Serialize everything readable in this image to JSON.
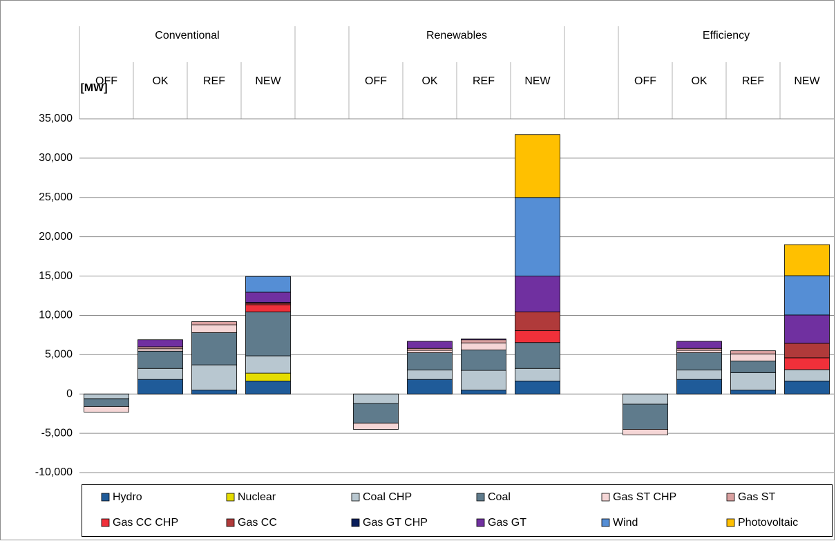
{
  "chart_data": {
    "type": "bar",
    "stacked": true,
    "y_label": "[MW]",
    "groups": [
      "Conventional",
      "Renewables",
      "Efficiency"
    ],
    "categories": [
      "OFF",
      "OK",
      "REF",
      "NEW",
      null,
      "OFF",
      "OK",
      "REF",
      "NEW",
      null,
      "OFF",
      "OK",
      "REF",
      "NEW"
    ],
    "ylim": [
      -10000,
      35000
    ],
    "yticks": [
      {
        "value": -10000,
        "label": "-10,000"
      },
      {
        "value": -5000,
        "label": "-5,000"
      },
      0,
      {
        "value": 5000,
        "label": "5,000"
      },
      {
        "value": 10000,
        "label": "10,000"
      },
      {
        "value": 15000,
        "label": "15,000"
      },
      {
        "value": 20000,
        "label": "20,000"
      },
      {
        "value": 25000,
        "label": "25,000"
      },
      {
        "value": 30000,
        "label": "30,000"
      },
      {
        "value": 35000,
        "label": "35,000"
      }
    ],
    "grid": true,
    "legend": "bottom",
    "series": [
      {
        "name": "Hydro",
        "color": "#1f5b99",
        "values": [
          0,
          1850,
          500,
          1650,
          null,
          0,
          1850,
          500,
          1650,
          null,
          0,
          1850,
          500,
          1650
        ]
      },
      {
        "name": "Nuclear",
        "color": "#e5dc00",
        "values": [
          0,
          0,
          0,
          1000,
          null,
          0,
          0,
          0,
          0,
          null,
          0,
          0,
          0,
          0
        ]
      },
      {
        "name": "Coal CHP",
        "color": "#b8c7d0",
        "values": [
          -600,
          1400,
          3200,
          2200,
          null,
          -1200,
          1200,
          2500,
          1600,
          null,
          -1300,
          1200,
          2200,
          1450
        ]
      },
      {
        "name": "Coal",
        "color": "#5f7b8c",
        "values": [
          -1000,
          2200,
          4100,
          5600,
          null,
          -2500,
          2200,
          2600,
          3300,
          null,
          -3200,
          2200,
          1500,
          0
        ]
      },
      {
        "name": "Gas ST CHP",
        "color": "#f5d6d6",
        "values": [
          -700,
          300,
          1000,
          0,
          null,
          -800,
          300,
          900,
          0,
          null,
          -700,
          300,
          900,
          0
        ]
      },
      {
        "name": "Gas ST",
        "color": "#d9a0a0",
        "values": [
          0,
          250,
          400,
          0,
          null,
          0,
          250,
          400,
          0,
          null,
          0,
          250,
          400,
          0
        ]
      },
      {
        "name": "Gas CC CHP",
        "color": "#f0303a",
        "values": [
          0,
          0,
          0,
          900,
          null,
          0,
          0,
          0,
          1500,
          null,
          0,
          0,
          0,
          1500
        ]
      },
      {
        "name": "Gas CC",
        "color": "#b03a3a",
        "values": [
          0,
          0,
          0,
          200,
          null,
          0,
          0,
          0,
          2400,
          null,
          0,
          0,
          0,
          1850
        ]
      },
      {
        "name": "Gas GT CHP",
        "color": "#0a1f5c",
        "values": [
          0,
          0,
          0,
          100,
          null,
          0,
          0,
          0,
          0,
          null,
          0,
          0,
          0,
          0
        ]
      },
      {
        "name": "Gas GT",
        "color": "#7030a0",
        "values": [
          0,
          900,
          0,
          1300,
          null,
          0,
          900,
          100,
          4550,
          null,
          0,
          900,
          0,
          3600
        ]
      },
      {
        "name": "Wind",
        "color": "#558ed5",
        "values": [
          0,
          0,
          0,
          2000,
          null,
          0,
          0,
          0,
          10000,
          null,
          0,
          0,
          0,
          5000
        ]
      },
      {
        "name": "Photovoltaic",
        "color": "#ffc000",
        "values": [
          0,
          0,
          0,
          0,
          null,
          0,
          0,
          0,
          8000,
          null,
          0,
          0,
          0,
          3950
        ]
      }
    ]
  }
}
